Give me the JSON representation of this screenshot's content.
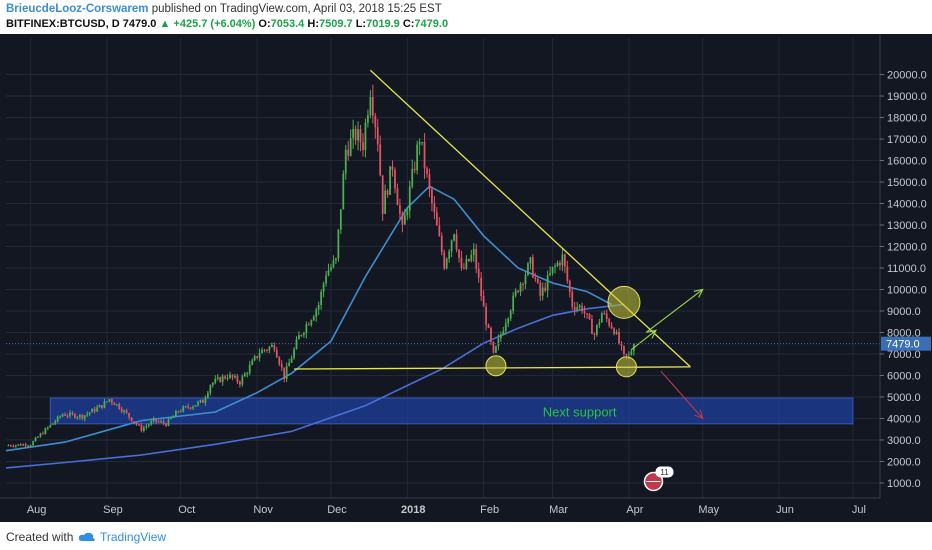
{
  "header": {
    "author": "BrieucdeLooz-Corswarem",
    "published": "published on TradingView.com, April 03, 2018 15:25 EST",
    "symbol": "BITFINEX:BTCUSD, D",
    "last": "7479.0",
    "change": "+425.7 (+6.04%)",
    "o_label": "O:",
    "o_value": "7053.4",
    "h_label": "H:",
    "h_value": "7509.7",
    "l_label": "L:",
    "l_value": "7019.9",
    "c_label": "C:",
    "c_value": "7479.0"
  },
  "footer": {
    "created_with": "Created with",
    "brand": "TradingView"
  },
  "colors": {
    "background": "#131722",
    "up": "#4caf50",
    "down": "#e05563",
    "ma_fast": "#3d8fd1",
    "ma_slow": "#4a6fd8",
    "trendline": "#e8e84a",
    "support_zone": "#1f3f9e",
    "annotation_text": "#27c43f",
    "price_tag": "#3a6fb5"
  },
  "chart_data": {
    "type": "candlestick",
    "x_ticks": [
      "Aug",
      "Sep",
      "Oct",
      "Nov",
      "Dec",
      "2018",
      "Feb",
      "Mar",
      "Apr",
      "May",
      "Jun",
      "Jul"
    ],
    "x_tick_dates": [
      "2017-08-01",
      "2017-09-01",
      "2017-10-01",
      "2017-11-01",
      "2017-12-01",
      "2018-01-01",
      "2018-02-01",
      "2018-03-01",
      "2018-04-01",
      "2018-05-01",
      "2018-06-01",
      "2018-07-01"
    ],
    "y_ticks": [
      "1000.0",
      "2000.0",
      "3000.0",
      "4000.0",
      "5000.0",
      "6000.0",
      "7000.0",
      "8000.0",
      "9000.0",
      "10000.0",
      "11000.0",
      "12000.0",
      "13000.0",
      "14000.0",
      "15000.0",
      "16000.0",
      "17000.0",
      "18000.0",
      "19000.0",
      "20000.0"
    ],
    "y_range": [
      300,
      21700
    ],
    "x_range": [
      "2017-07-22",
      "2018-07-12"
    ],
    "current_price_label": "7479.0",
    "close_anchors": [
      [
        "2017-07-22",
        2750
      ],
      [
        "2017-08-01",
        2800
      ],
      [
        "2017-08-05",
        3250
      ],
      [
        "2017-08-14",
        4200
      ],
      [
        "2017-08-22",
        4100
      ],
      [
        "2017-08-30",
        4600
      ],
      [
        "2017-09-02",
        4900
      ],
      [
        "2017-09-06",
        4550
      ],
      [
        "2017-09-15",
        3500
      ],
      [
        "2017-09-20",
        3900
      ],
      [
        "2017-09-25",
        3750
      ],
      [
        "2017-09-30",
        4350
      ],
      [
        "2017-10-10",
        4800
      ],
      [
        "2017-10-13",
        5600
      ],
      [
        "2017-10-20",
        6000
      ],
      [
        "2017-10-25",
        5700
      ],
      [
        "2017-11-02",
        7100
      ],
      [
        "2017-11-08",
        7400
      ],
      [
        "2017-11-12",
        5950
      ],
      [
        "2017-11-18",
        7800
      ],
      [
        "2017-11-26",
        9300
      ],
      [
        "2017-11-29",
        10800
      ],
      [
        "2017-12-03",
        11300
      ],
      [
        "2017-12-07",
        16500
      ],
      [
        "2017-12-11",
        17200
      ],
      [
        "2017-12-14",
        16800
      ],
      [
        "2017-12-17",
        19400
      ],
      [
        "2017-12-20",
        17000
      ],
      [
        "2017-12-22",
        13800
      ],
      [
        "2017-12-26",
        15800
      ],
      [
        "2017-12-30",
        12700
      ],
      [
        "2018-01-06",
        17100
      ],
      [
        "2018-01-10",
        14500
      ],
      [
        "2018-01-16",
        11200
      ],
      [
        "2018-01-20",
        12800
      ],
      [
        "2018-01-23",
        10800
      ],
      [
        "2018-01-28",
        11700
      ],
      [
        "2018-02-01",
        9100
      ],
      [
        "2018-02-05",
        6900
      ],
      [
        "2018-02-10",
        8600
      ],
      [
        "2018-02-15",
        10100
      ],
      [
        "2018-02-20",
        11200
      ],
      [
        "2018-02-24",
        9700
      ],
      [
        "2018-03-01",
        10900
      ],
      [
        "2018-03-05",
        11500
      ],
      [
        "2018-03-09",
        9300
      ],
      [
        "2018-03-13",
        9150
      ],
      [
        "2018-03-18",
        7900
      ],
      [
        "2018-03-21",
        8900
      ],
      [
        "2018-03-26",
        8150
      ],
      [
        "2018-03-30",
        6850
      ],
      [
        "2018-04-01",
        6900
      ],
      [
        "2018-04-03",
        7479
      ]
    ],
    "moving_averages": [
      {
        "period": 50,
        "color_key": "ma_fast",
        "points": [
          [
            "2017-07-22",
            2500
          ],
          [
            "2017-08-15",
            2900
          ],
          [
            "2017-09-15",
            3900
          ],
          [
            "2017-10-15",
            4300
          ],
          [
            "2017-11-01",
            5200
          ],
          [
            "2017-11-15",
            6100
          ],
          [
            "2017-12-01",
            7600
          ],
          [
            "2017-12-15",
            10600
          ],
          [
            "2018-01-01",
            13800
          ],
          [
            "2018-01-10",
            14800
          ],
          [
            "2018-01-20",
            14200
          ],
          [
            "2018-02-01",
            12500
          ],
          [
            "2018-02-15",
            11000
          ],
          [
            "2018-03-01",
            10300
          ],
          [
            "2018-03-15",
            9900
          ],
          [
            "2018-03-25",
            9300
          ]
        ]
      },
      {
        "period": 200,
        "color_key": "ma_slow",
        "points": [
          [
            "2017-07-22",
            1700
          ],
          [
            "2017-08-15",
            1950
          ],
          [
            "2017-09-15",
            2300
          ],
          [
            "2017-10-15",
            2800
          ],
          [
            "2017-11-15",
            3400
          ],
          [
            "2017-12-15",
            4600
          ],
          [
            "2018-01-15",
            6300
          ],
          [
            "2018-02-01",
            7500
          ],
          [
            "2018-02-15",
            8200
          ],
          [
            "2018-03-01",
            8800
          ],
          [
            "2018-03-15",
            9100
          ],
          [
            "2018-03-30",
            9300
          ]
        ]
      }
    ],
    "annotations": {
      "descending_trendline": [
        [
          "2017-12-17",
          20200
        ],
        [
          "2018-04-26",
          6400
        ]
      ],
      "support_line": [
        [
          "2017-11-16",
          6300
        ],
        [
          "2018-04-26",
          6400
        ]
      ],
      "support_zone": {
        "date_start": "2017-08-09",
        "date_end": "2018-07-01",
        "price_low": 3750,
        "price_high": 4950
      },
      "support_zone_label": "Next support",
      "circles": [
        [
          "2018-02-06",
          6450
        ],
        [
          "2018-03-31",
          6400
        ],
        [
          "2018-03-30",
          9400
        ]
      ],
      "bullish_arrow": [
        [
          "2018-04-08",
          8000
        ],
        [
          "2018-05-01",
          10000
        ]
      ],
      "small_arrow": [
        [
          "2018-04-02",
          7200
        ],
        [
          "2018-04-12",
          8100
        ]
      ],
      "bearish_arrow": [
        [
          "2018-04-14",
          6200
        ],
        [
          "2018-05-01",
          4000
        ]
      ],
      "event_badge": {
        "date": "2018-04-11",
        "text": "11"
      }
    }
  }
}
